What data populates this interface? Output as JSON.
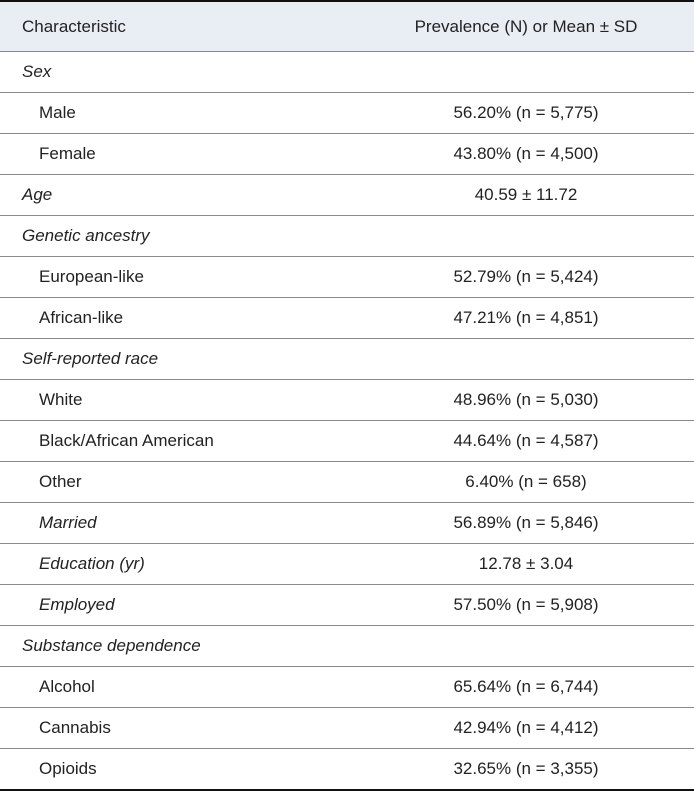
{
  "table": {
    "header": [
      "Characteristic",
      "Prevalence (N) or Mean ± SD"
    ],
    "rows": [
      [
        "Sex"
      ],
      [
        "Male",
        "56.20% (n = 5,775)"
      ],
      [
        "Female",
        "43.80% (n = 4,500)"
      ],
      [
        "Age",
        "40.59 ± 11.72"
      ],
      [
        "Genetic ancestry"
      ],
      [
        "European-like",
        "52.79% (n = 5,424)"
      ],
      [
        "African-like",
        "47.21% (n = 4,851)"
      ],
      [
        "Self-reported race"
      ],
      [
        "White",
        "48.96% (n = 5,030)"
      ],
      [
        "Black/African American",
        "44.64% (n = 4,587)"
      ],
      [
        "Other",
        "6.40% (n = 658)"
      ],
      [
        "Married",
        "56.89% (n = 5,846)"
      ],
      [
        "Education (yr)",
        "12.78 ± 3.04"
      ],
      [
        "Employed",
        "57.50% (n = 5,908)"
      ],
      [
        "Substance dependence"
      ],
      [
        "Alcohol",
        "65.64% (n = 6,744)"
      ],
      [
        "Cannabis",
        "42.94% (n = 4,412)"
      ],
      [
        "Opioids",
        "32.65% (n = 3,355)"
      ]
    ]
  }
}
